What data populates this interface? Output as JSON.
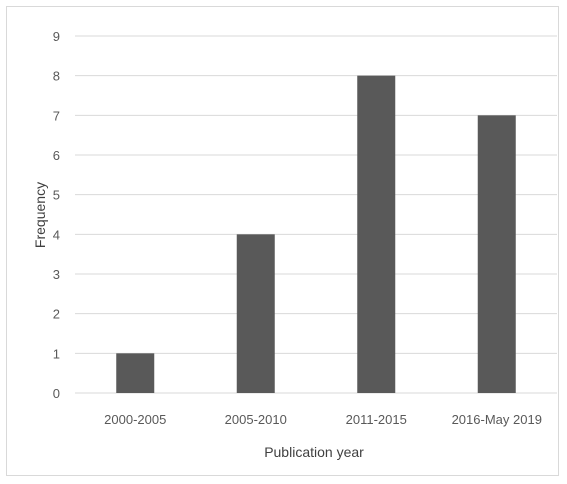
{
  "chart_data": {
    "type": "bar",
    "categories": [
      "2000-2005",
      "2005-2010",
      "2011-2015",
      "2016-May 2019"
    ],
    "values": [
      1,
      4,
      8,
      7
    ],
    "title": "",
    "xlabel": "Publication year",
    "ylabel": "Frequency",
    "ylim": [
      0,
      9
    ],
    "yticks": [
      "0",
      "1",
      "2",
      "3",
      "4",
      "5",
      "6",
      "7",
      "8",
      "9"
    ],
    "grid": true,
    "legend": "none",
    "bar_color": "#595959",
    "grid_color": "#d9d9d9"
  }
}
